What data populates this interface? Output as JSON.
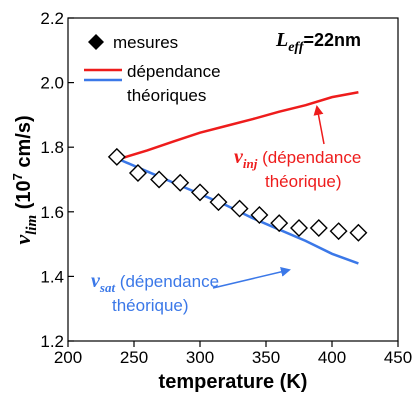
{
  "chart_data": {
    "type": "line",
    "title": "",
    "xlabel": "temperature (K)",
    "ylabel_main": "v",
    "ylabel_sub": "lim",
    "ylabel_units_prefix": " (10",
    "ylabel_units_sup": "7",
    "ylabel_units_suffix": " cm/s)",
    "xlim": [
      200,
      450
    ],
    "ylim": [
      1.2,
      2.2
    ],
    "xticks": [
      200,
      250,
      300,
      350,
      400,
      450
    ],
    "yticks": [
      "1.2",
      "1.4",
      "1.6",
      "1.8",
      "2.0",
      "2.2"
    ],
    "grid": false,
    "legend_position": "top-left",
    "top_right_label": {
      "main": "L",
      "sub": "eff",
      "rest": "=22nm"
    },
    "legend": {
      "markers_label": "mesures",
      "lines_label_line1": "dépendance",
      "lines_label_line2": "théoriques"
    },
    "series": [
      {
        "name": "mesures",
        "style": "markers",
        "color": "#000000",
        "x": [
          237,
          253,
          269,
          285,
          300,
          314,
          330,
          345,
          360,
          375,
          390,
          405,
          420
        ],
        "y": [
          1.77,
          1.72,
          1.7,
          1.69,
          1.66,
          1.63,
          1.61,
          1.59,
          1.565,
          1.55,
          1.55,
          1.54,
          1.535
        ]
      },
      {
        "name": "v_inj",
        "style": "line",
        "color": "#ee1c1c",
        "x": [
          240,
          260,
          280,
          300,
          320,
          340,
          360,
          380,
          400,
          420
        ],
        "y": [
          1.765,
          1.79,
          1.818,
          1.845,
          1.866,
          1.887,
          1.91,
          1.93,
          1.955,
          1.97
        ]
      },
      {
        "name": "v_sat",
        "style": "line",
        "color": "#3b78e8",
        "x": [
          240,
          260,
          280,
          300,
          320,
          340,
          360,
          380,
          400,
          420
        ],
        "y": [
          1.76,
          1.725,
          1.69,
          1.655,
          1.62,
          1.58,
          1.545,
          1.51,
          1.47,
          1.44
        ]
      }
    ],
    "annotations": {
      "inj_main": "v",
      "inj_sub": "inj",
      "inj_line1_rest": " (dépendance",
      "inj_line2": "théorique)",
      "sat_main": "v",
      "sat_sub": "sat",
      "sat_line1_rest": " (dépendance",
      "sat_line2": "théorique)"
    }
  }
}
